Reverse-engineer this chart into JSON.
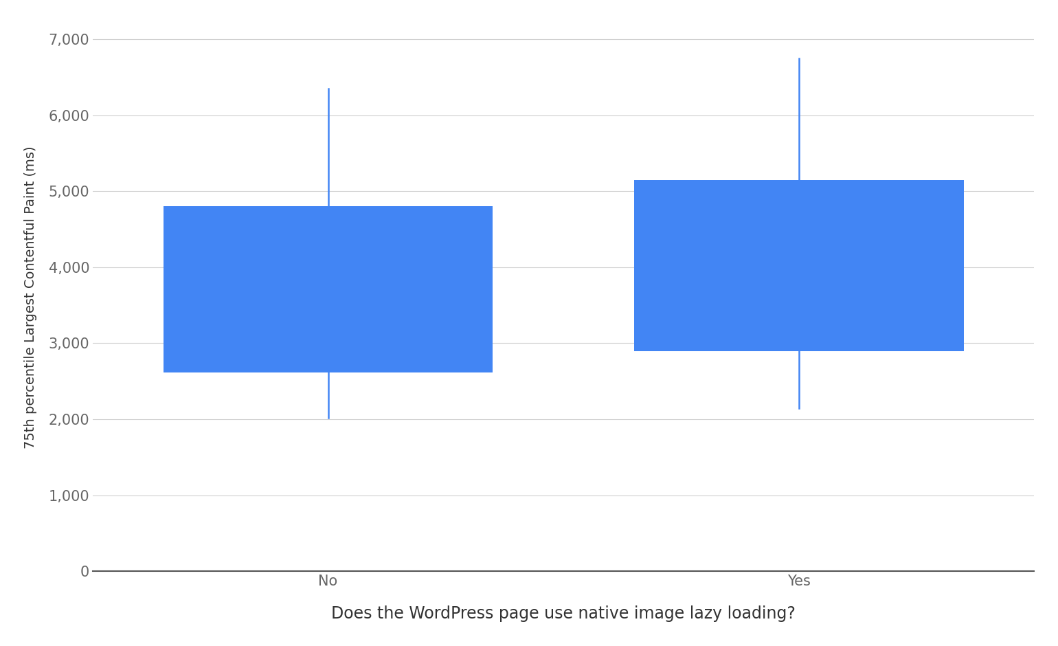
{
  "categories": [
    "No",
    "Yes"
  ],
  "no": {
    "p10": 2020,
    "p25": 2620,
    "p75": 4800,
    "p90": 6350
  },
  "yes": {
    "p10": 2150,
    "p25": 2900,
    "p75": 5150,
    "p90": 6750
  },
  "box_color": "#4285F4",
  "whisker_color": "#4285F4",
  "background_color": "#ffffff",
  "xlabel": "Does the WordPress page use native image lazy loading?",
  "ylabel": "75th percentile Largest Contentful Paint (ms)",
  "ylim": [
    0,
    7200
  ],
  "yticks": [
    0,
    1000,
    2000,
    3000,
    4000,
    5000,
    6000,
    7000
  ],
  "ytick_labels": [
    "0",
    "1,000",
    "2,000",
    "3,000",
    "4,000",
    "5,000",
    "6,000",
    "7,000"
  ],
  "positions": [
    1,
    3
  ],
  "xlim": [
    0,
    4
  ],
  "box_width": 1.4,
  "whisker_linewidth": 1.8,
  "xlabel_fontsize": 17,
  "ylabel_fontsize": 14,
  "tick_fontsize": 15,
  "grid_color": "#d0d0d0",
  "axis_color": "#555555",
  "tick_label_color": "#666666"
}
